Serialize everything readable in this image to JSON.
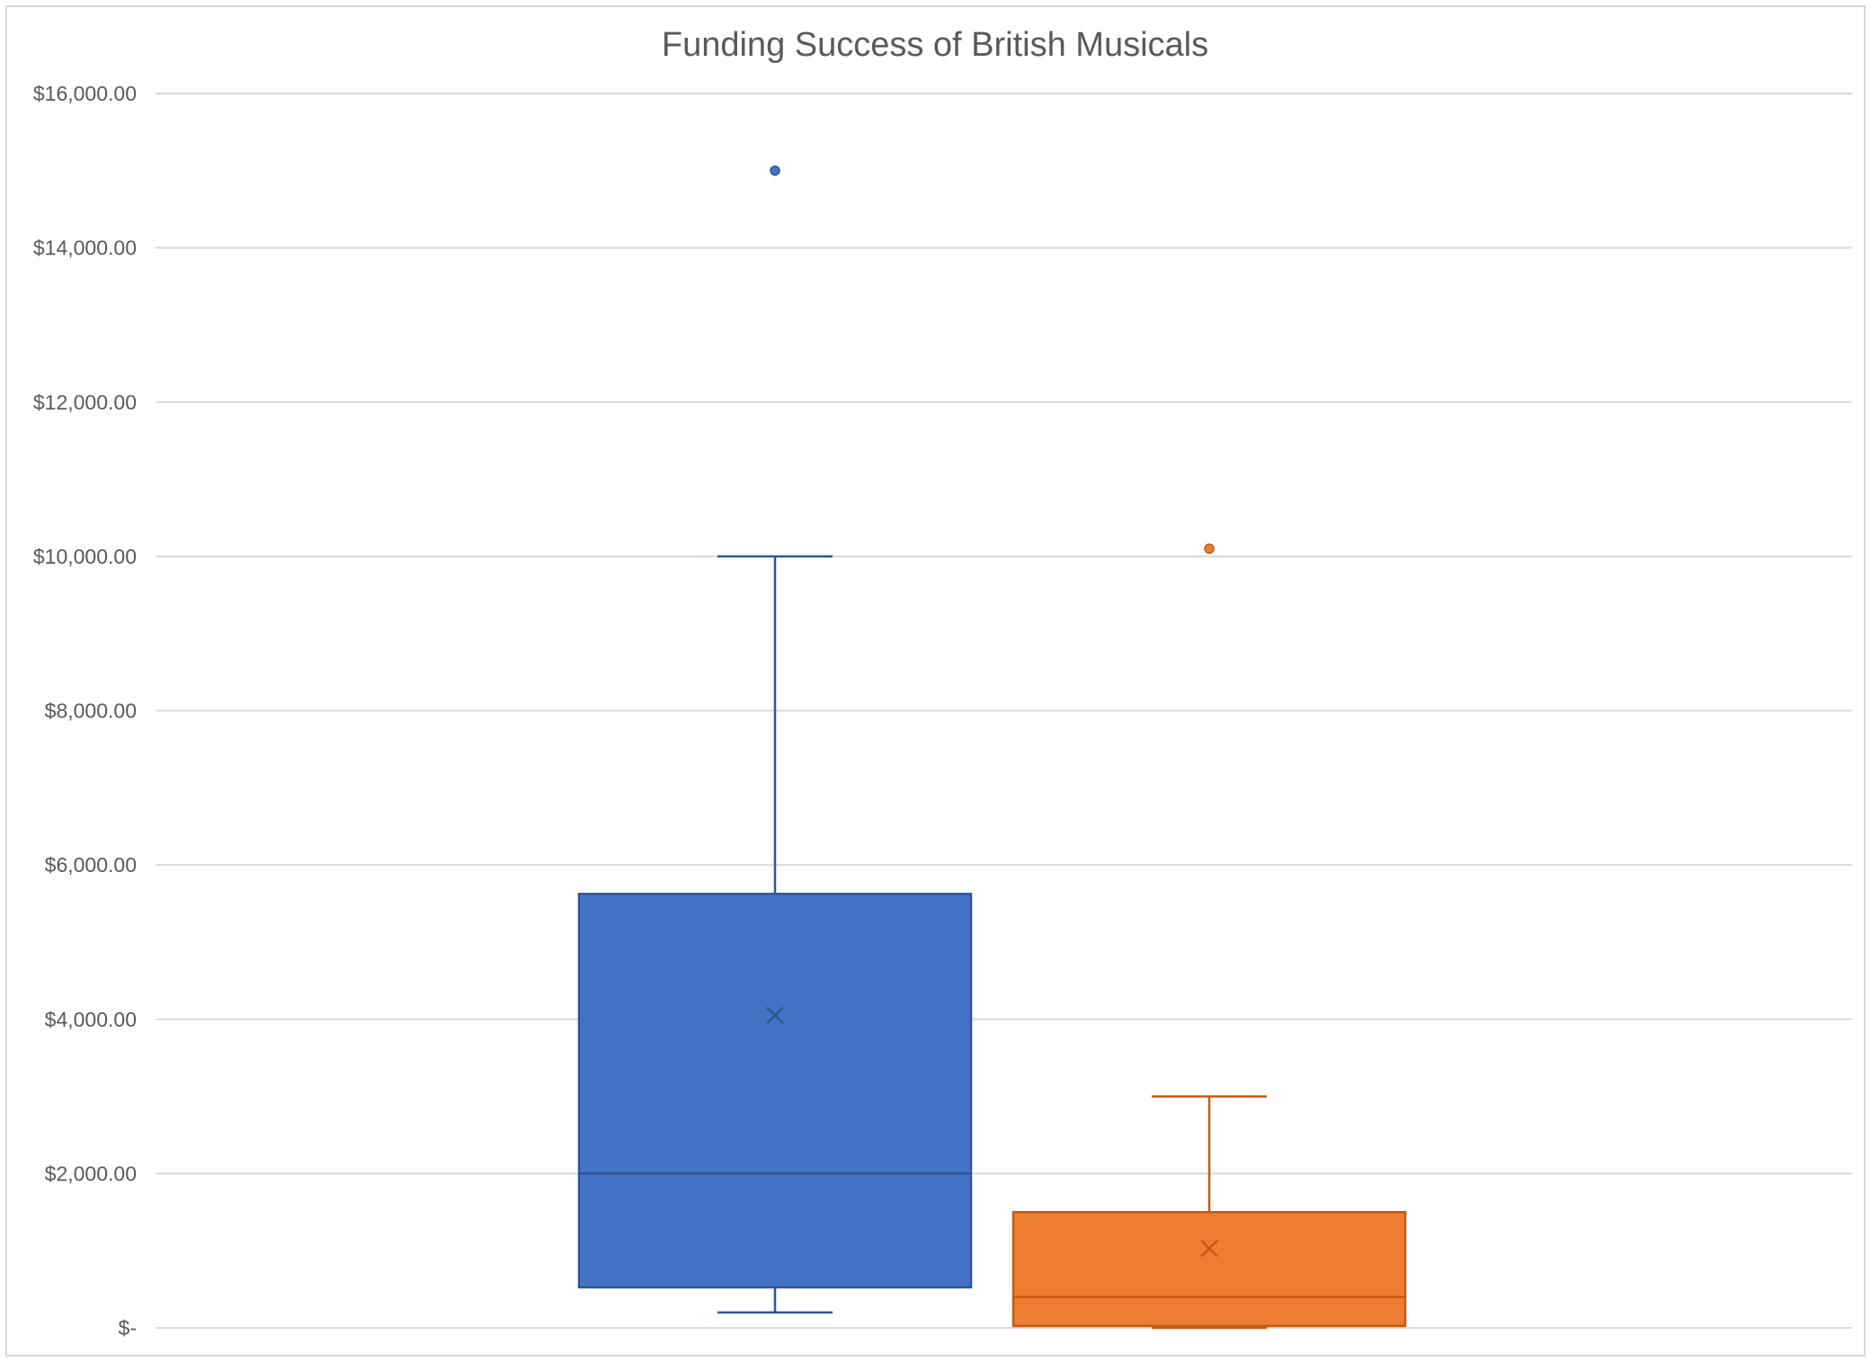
{
  "chart_data": {
    "type": "box",
    "title": "Funding Success of British Musicals",
    "xlabel": "",
    "ylabel": "",
    "ylim": [
      0,
      16000
    ],
    "yticks": [
      0,
      2000,
      4000,
      6000,
      8000,
      10000,
      12000,
      14000,
      16000
    ],
    "ytick_labels": [
      "$-",
      "$2,000.00",
      "$4,000.00",
      "$6,000.00",
      "$8,000.00",
      "$10,000.00",
      "$12,000.00",
      "$14,000.00",
      "$16,000.00"
    ],
    "grid": true,
    "legend": "none",
    "series": [
      {
        "color": "#4472C4",
        "stroke": "#2F5597",
        "min": 200,
        "q1": 525,
        "median": 2000,
        "q3": 5625,
        "max": 10000,
        "mean": 4050,
        "outliers": [
          15000
        ]
      },
      {
        "color": "#ED7D31",
        "stroke": "#C55A11",
        "min": 0,
        "q1": 25,
        "median": 400,
        "q3": 1500,
        "max": 3000,
        "mean": 1030,
        "outliers": [
          10100
        ]
      }
    ]
  }
}
